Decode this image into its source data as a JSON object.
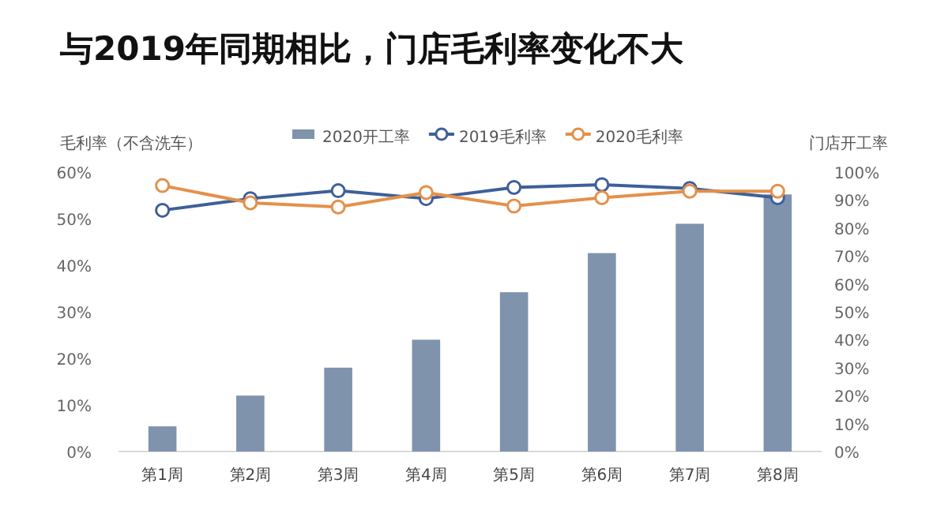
{
  "chart_data": {
    "type": "bar",
    "title": "与2019年同期相比，门店毛利率变化不大",
    "ylabel": "毛利率（不含洗车）",
    "y2label": "门店开工率",
    "categories": [
      "第1周",
      "第2周",
      "第3周",
      "第4周",
      "第5周",
      "第6周",
      "第7周",
      "第8周"
    ],
    "series": [
      {
        "name": "2020开工率",
        "axis": "y2",
        "color": "#7f93ad",
        "values": [
          9,
          20,
          30,
          40,
          57,
          71,
          81.5,
          92
        ]
      },
      {
        "name": "2019毛利率",
        "type": "line",
        "color": "#3e5f9a",
        "values": [
          51.8,
          54.3,
          56,
          54.3,
          56.7,
          57.3,
          56.5,
          54.5
        ]
      },
      {
        "name": "2020毛利率",
        "type": "line",
        "color": "#e4904a",
        "values": [
          57.1,
          53.4,
          52.5,
          55.6,
          52.7,
          54.5,
          55.9,
          55.9
        ]
      }
    ],
    "ylim": [
      0,
      60
    ],
    "yticks": [
      {
        "value": 0,
        "label": "0%"
      },
      {
        "value": 10,
        "label": "10%"
      },
      {
        "value": 20,
        "label": "20%"
      },
      {
        "value": 30,
        "label": "30%"
      },
      {
        "value": 40,
        "label": "40%"
      },
      {
        "value": 50,
        "label": "50%"
      },
      {
        "value": 60,
        "label": "60%"
      }
    ],
    "y2lim": [
      0,
      100
    ],
    "y2ticks": [
      {
        "value": 0,
        "label": "0%"
      },
      {
        "value": 10,
        "label": "10%"
      },
      {
        "value": 20,
        "label": "20%"
      },
      {
        "value": 30,
        "label": "30%"
      },
      {
        "value": 40,
        "label": "40%"
      },
      {
        "value": 50,
        "label": "50%"
      },
      {
        "value": 60,
        "label": "60%"
      },
      {
        "value": 70,
        "label": "70%"
      },
      {
        "value": 80,
        "label": "80%"
      },
      {
        "value": 90,
        "label": "90%"
      },
      {
        "value": 100,
        "label": "100%"
      }
    ],
    "legend": "top",
    "marker": "circle"
  }
}
